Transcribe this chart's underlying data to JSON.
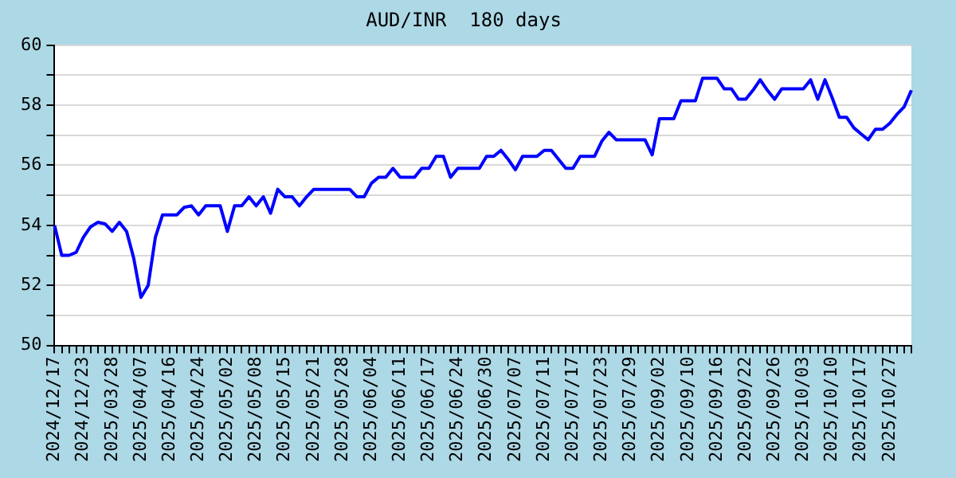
{
  "chart_data": {
    "type": "line",
    "title": "AUD/INR  180 days",
    "categories": [
      "2024/12/17",
      null,
      null,
      null,
      "2024/12/23",
      null,
      null,
      null,
      "2025/03/28",
      null,
      null,
      null,
      "2025/04/07",
      null,
      null,
      null,
      "2025/04/16",
      null,
      null,
      null,
      "2025/04/24",
      null,
      null,
      null,
      "2025/05/02",
      null,
      null,
      null,
      "2025/05/08",
      null,
      null,
      null,
      "2025/05/15",
      null,
      null,
      null,
      "2025/05/21",
      null,
      null,
      null,
      "2025/05/28",
      null,
      null,
      null,
      "2025/06/04",
      null,
      null,
      null,
      "2025/06/11",
      null,
      null,
      null,
      "2025/06/17",
      null,
      null,
      null,
      "2025/06/24",
      null,
      null,
      null,
      "2025/06/30",
      null,
      null,
      null,
      "2025/07/07",
      null,
      null,
      null,
      "2025/07/11",
      null,
      null,
      null,
      "2025/07/17",
      null,
      null,
      null,
      "2025/07/23",
      null,
      null,
      null,
      "2025/07/29",
      null,
      null,
      null,
      "2025/09/02",
      null,
      null,
      null,
      "2025/09/10",
      null,
      null,
      null,
      "2025/09/16",
      null,
      null,
      null,
      "2025/09/22",
      null,
      null,
      null,
      "2025/09/26",
      null,
      null,
      null,
      "2025/10/03",
      null,
      null,
      null,
      "2025/10/10",
      null,
      null,
      null,
      "2025/10/17",
      null,
      null,
      null,
      "2025/10/27",
      null,
      null,
      null
    ],
    "series": [
      {
        "color": "#0000ff",
        "values": [
          54.0,
          53.0,
          53.0,
          53.1,
          53.6,
          53.95,
          54.1,
          54.05,
          53.8,
          54.1,
          53.8,
          52.9,
          51.6,
          52.0,
          53.6,
          54.35,
          54.35,
          54.35,
          54.6,
          54.65,
          54.35,
          54.65,
          54.65,
          54.65,
          53.8,
          54.65,
          54.65,
          54.95,
          54.65,
          54.95,
          54.4,
          55.2,
          54.95,
          54.95,
          54.65,
          54.95,
          55.2,
          55.2,
          55.2,
          55.2,
          55.2,
          55.2,
          54.95,
          54.95,
          55.4,
          55.6,
          55.6,
          55.9,
          55.6,
          55.6,
          55.6,
          55.9,
          55.9,
          56.3,
          56.3,
          55.6,
          55.9,
          55.9,
          55.9,
          55.9,
          56.3,
          56.3,
          56.5,
          56.2,
          55.85,
          56.3,
          56.3,
          56.3,
          56.5,
          56.5,
          56.2,
          55.9,
          55.9,
          56.3,
          56.3,
          56.3,
          56.8,
          57.1,
          56.85,
          56.85,
          56.85,
          56.85,
          56.85,
          56.35,
          57.55,
          57.55,
          57.55,
          58.15,
          58.15,
          58.15,
          58.9,
          58.9,
          58.9,
          58.55,
          58.55,
          58.2,
          58.2,
          58.5,
          58.85,
          58.5,
          58.2,
          58.55,
          58.55,
          58.55,
          58.55,
          58.85,
          58.2,
          58.85,
          58.25,
          57.6,
          57.6,
          57.25,
          57.05,
          56.85,
          57.2,
          57.2,
          57.4,
          57.7,
          57.95,
          58.5
        ]
      }
    ],
    "ylim": [
      50,
      60
    ],
    "yticks": [
      50,
      {
        "value": 51,
        "label": null
      },
      52,
      {
        "value": 53,
        "label": null
      },
      54,
      {
        "value": 55,
        "label": null
      },
      56,
      {
        "value": 57,
        "label": null
      },
      58,
      {
        "value": 59,
        "label": null
      },
      60
    ],
    "grid": "y",
    "marker": "none",
    "line_style": "solid"
  }
}
